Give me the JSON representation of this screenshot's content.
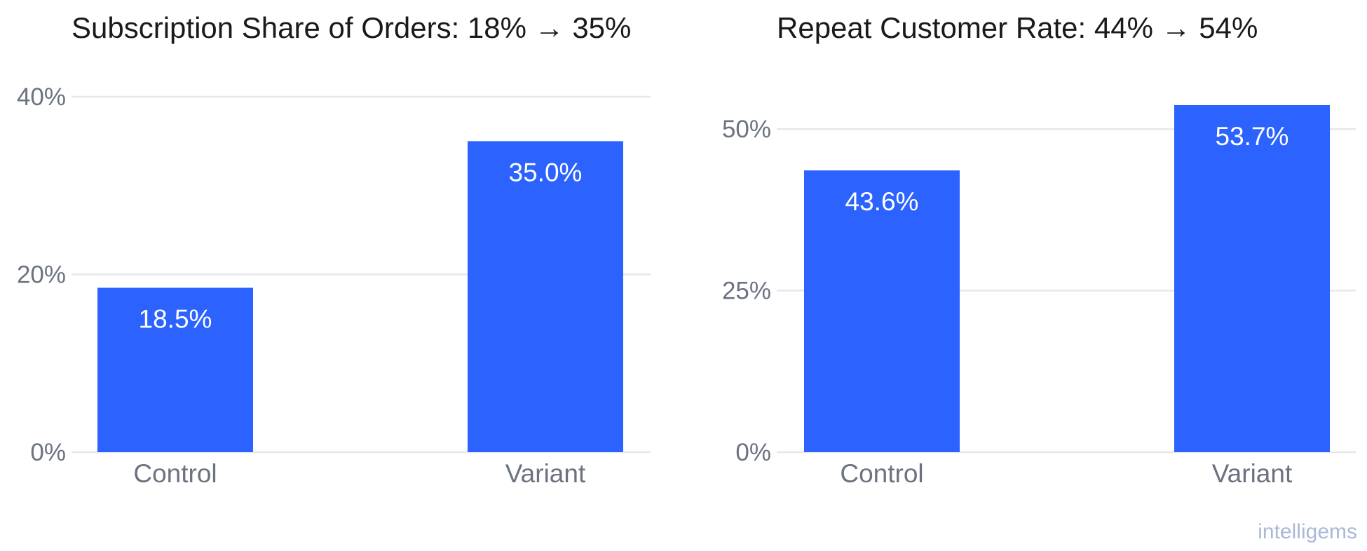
{
  "chart_data": [
    {
      "type": "bar",
      "title": "Subscription Share of Orders: 18% → 35%",
      "categories": [
        "Control",
        "Variant"
      ],
      "values": [
        18.5,
        35.0
      ],
      "value_labels": [
        "18.5%",
        "35.0%"
      ],
      "ylim": [
        0,
        40
      ],
      "yticks": [
        0,
        20,
        40
      ],
      "ytick_labels": [
        "0%",
        "20%",
        "40%"
      ],
      "xlabel": "",
      "ylabel": "",
      "grid": true,
      "bar_color": "#2c63ff"
    },
    {
      "type": "bar",
      "title": "Repeat Customer Rate: 44% → 54%",
      "categories": [
        "Control",
        "Variant"
      ],
      "values": [
        43.6,
        53.7
      ],
      "value_labels": [
        "43.6%",
        "53.7%"
      ],
      "ylim": [
        0,
        55
      ],
      "yticks": [
        0,
        25,
        50
      ],
      "ytick_labels": [
        "0%",
        "25%",
        "50%"
      ],
      "xlabel": "",
      "ylabel": "",
      "grid": true,
      "bar_color": "#2c63ff"
    }
  ],
  "watermark": "intelligems"
}
